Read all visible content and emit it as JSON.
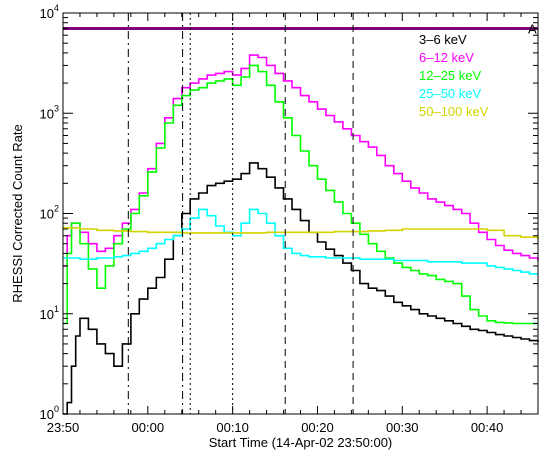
{
  "chart_data": {
    "type": "line",
    "xlabel": "Start Time (14-Apr-02 23:50:00)",
    "ylabel": "RHESSI Corrected Count Rate",
    "y_scale": "log",
    "xlim": [
      0,
      56
    ],
    "ylim": [
      1,
      10000
    ],
    "x_ticks": [
      {
        "x": 0,
        "label": "23:50"
      },
      {
        "x": 10,
        "label": "00:00"
      },
      {
        "x": 20,
        "label": "00:10"
      },
      {
        "x": 30,
        "label": "00:20"
      },
      {
        "x": 40,
        "label": "00:30"
      },
      {
        "x": 50,
        "label": "00:40"
      }
    ],
    "y_ticks": [
      {
        "y": 1,
        "base": "10",
        "exp": "0"
      },
      {
        "y": 10,
        "base": "10",
        "exp": "1"
      },
      {
        "y": 100,
        "base": "10",
        "exp": "2"
      },
      {
        "y": 1000,
        "base": "10",
        "exp": "3"
      },
      {
        "y": 10000,
        "base": "10",
        "exp": "4"
      }
    ],
    "legend_position": "top-right",
    "series": [
      {
        "name": "3–6 keV",
        "color": "#000000",
        "x": [
          0,
          0.5,
          1,
          1.5,
          2,
          3,
          4,
          5,
          6,
          7,
          8,
          9,
          10,
          11,
          12,
          13,
          14,
          15,
          16,
          17,
          18,
          19,
          20,
          21,
          22,
          23,
          24,
          25,
          26,
          27,
          28,
          29,
          30,
          31,
          32,
          33,
          34,
          35,
          36,
          37,
          38,
          39,
          40,
          41,
          42,
          43,
          44,
          45,
          46,
          47,
          48,
          49,
          50,
          51,
          52,
          53,
          54,
          55,
          56
        ],
        "y": [
          1,
          1.3,
          3,
          6,
          9,
          7,
          5,
          4,
          3,
          5,
          10,
          14,
          18,
          23,
          35,
          60,
          100,
          140,
          160,
          190,
          200,
          210,
          220,
          250,
          320,
          280,
          230,
          180,
          140,
          110,
          85,
          65,
          52,
          44,
          38,
          32,
          27,
          20,
          18,
          17,
          15,
          13,
          12,
          11,
          10,
          9.5,
          9,
          8.5,
          8,
          7.5,
          7,
          6.8,
          6.5,
          6.2,
          6,
          5.8,
          5.6,
          5.4,
          5.2
        ]
      },
      {
        "name": "6–12 keV",
        "color": "#ff00ff",
        "x": [
          0,
          0.5,
          1,
          2,
          3,
          4,
          5,
          6,
          7,
          8,
          9,
          10,
          11,
          12,
          13,
          14,
          15,
          16,
          17,
          18,
          19,
          20,
          21,
          22,
          23,
          24,
          25,
          26,
          27,
          28,
          29,
          30,
          31,
          32,
          33,
          34,
          35,
          36,
          37,
          38,
          39,
          40,
          41,
          42,
          43,
          44,
          45,
          46,
          47,
          48,
          49,
          50,
          51,
          52,
          53,
          54,
          55,
          56
        ],
        "y": [
          30,
          60,
          80,
          65,
          50,
          42,
          45,
          60,
          80,
          110,
          160,
          280,
          500,
          900,
          1400,
          1800,
          2000,
          2200,
          2400,
          2500,
          2600,
          2400,
          2800,
          3800,
          3600,
          3000,
          2500,
          2100,
          1800,
          1500,
          1300,
          1100,
          950,
          820,
          700,
          600,
          520,
          460,
          380,
          300,
          250,
          210,
          180,
          160,
          140,
          130,
          120,
          110,
          100,
          80,
          65,
          55,
          48,
          43,
          40,
          38,
          36,
          34
        ]
      },
      {
        "name": "12–25 keV",
        "color": "#00ff00",
        "x": [
          0,
          0.5,
          1,
          2,
          3,
          4,
          5,
          6,
          7,
          8,
          9,
          10,
          11,
          12,
          13,
          14,
          15,
          16,
          17,
          18,
          19,
          20,
          21,
          22,
          23,
          24,
          25,
          26,
          27,
          28,
          29,
          30,
          31,
          32,
          33,
          34,
          35,
          36,
          37,
          38,
          39,
          40,
          41,
          42,
          43,
          44,
          45,
          46,
          47,
          48,
          49,
          50,
          51,
          52,
          53,
          54,
          55,
          56
        ],
        "y": [
          8,
          40,
          80,
          50,
          28,
          18,
          30,
          50,
          70,
          100,
          150,
          260,
          450,
          800,
          1200,
          1500,
          1700,
          1800,
          2000,
          2100,
          2200,
          1900,
          2300,
          3000,
          2600,
          1900,
          1300,
          900,
          600,
          420,
          300,
          220,
          170,
          130,
          100,
          80,
          62,
          50,
          42,
          36,
          32,
          29,
          27,
          25,
          24,
          22,
          21,
          20,
          15,
          11,
          9.5,
          8.5,
          8.2,
          8.1,
          8,
          8,
          8,
          8
        ]
      },
      {
        "name": "25–50 keV",
        "color": "#00ffff",
        "x": [
          0,
          1,
          2,
          3,
          4,
          5,
          6,
          7,
          8,
          9,
          10,
          11,
          12,
          13,
          14,
          15,
          16,
          17,
          18,
          19,
          20,
          21,
          22,
          23,
          24,
          25,
          26,
          27,
          28,
          29,
          30,
          31,
          32,
          33,
          34,
          35,
          36,
          37,
          38,
          39,
          40,
          41,
          42,
          43,
          44,
          45,
          46,
          47,
          48,
          49,
          50,
          51,
          52,
          53,
          54,
          55,
          56
        ],
        "y": [
          36,
          36,
          35,
          35,
          36,
          36,
          37,
          38,
          40,
          42,
          45,
          50,
          55,
          60,
          70,
          90,
          110,
          95,
          75,
          65,
          60,
          80,
          110,
          100,
          80,
          60,
          45,
          40,
          38,
          37,
          37,
          36,
          36,
          36,
          36,
          35,
          35,
          35,
          35,
          34,
          34,
          34,
          34,
          33,
          33,
          33,
          33,
          32,
          32,
          32,
          30,
          29,
          28,
          27,
          26,
          25,
          25
        ]
      },
      {
        "name": "50–100 keV",
        "color": "#d4d400",
        "x": [
          0,
          2,
          4,
          6,
          8,
          10,
          12,
          14,
          16,
          18,
          20,
          22,
          24,
          26,
          28,
          30,
          32,
          34,
          36,
          38,
          40,
          42,
          44,
          46,
          48,
          50,
          52,
          54,
          56
        ],
        "y": [
          72,
          70,
          68,
          67,
          66,
          65,
          65,
          64,
          64,
          64,
          64,
          64,
          65,
          65,
          65,
          65,
          66,
          66,
          67,
          68,
          70,
          70,
          70,
          70,
          70,
          68,
          60,
          58,
          55
        ]
      }
    ],
    "reference_line": {
      "y": 7000,
      "color": "#800080"
    },
    "vertical_markers": [
      {
        "x": 7.7,
        "style": "dash-dot"
      },
      {
        "x": 14.1,
        "style": "dash-dot"
      },
      {
        "x": 15.0,
        "style": "dotted"
      },
      {
        "x": 20.0,
        "style": "dotted"
      },
      {
        "x": 26.2,
        "style": "dashed"
      },
      {
        "x": 34.2,
        "style": "dashed"
      }
    ],
    "annotations": [
      {
        "text": "A",
        "color": "#800080"
      }
    ]
  }
}
